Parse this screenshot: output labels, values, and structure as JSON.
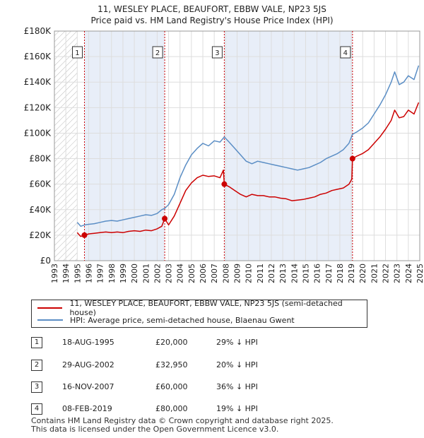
{
  "title_line1": "11, WESLEY PLACE, BEAUFORT, EBBW VALE, NP23 5JS",
  "title_line2": "Price paid vs. HM Land Registry's House Price Index (HPI)",
  "legend": {
    "property_label": "11, WESLEY PLACE, BEAUFORT, EBBW VALE, NP23 5JS (semi-detached house)",
    "hpi_label": "HPI: Average price, semi-detached house, Blaenau Gwent"
  },
  "colors": {
    "property": "#cc0000",
    "hpi": "#5b8ec5",
    "shade": "#e8eef8",
    "grid": "#dddddd",
    "marker_line": "#cc0000"
  },
  "sales": [
    {
      "num": "1",
      "date": "18-AUG-1995",
      "price": "£20,000",
      "hpi": "29% ↓ HPI"
    },
    {
      "num": "2",
      "date": "29-AUG-2002",
      "price": "£32,950",
      "hpi": "20% ↓ HPI"
    },
    {
      "num": "3",
      "date": "16-NOV-2007",
      "price": "£60,000",
      "hpi": "36% ↓ HPI"
    },
    {
      "num": "4",
      "date": "08-FEB-2019",
      "price": "£80,000",
      "hpi": "19% ↓ HPI"
    }
  ],
  "footer": {
    "line1": "Contains HM Land Registry data © Crown copyright and database right 2025.",
    "line2": "This data is licensed under the Open Government Licence v3.0."
  },
  "chart_data": {
    "type": "line",
    "title": "11, WESLEY PLACE, BEAUFORT, EBBW VALE, NP23 5JS",
    "subtitle": "Price paid vs. HM Land Registry's House Price Index (HPI)",
    "xlabel": "",
    "ylabel": "",
    "xlim": [
      1993,
      2025
    ],
    "ylim": [
      0,
      180000
    ],
    "yticks": [
      0,
      20000,
      40000,
      60000,
      80000,
      100000,
      120000,
      140000,
      160000,
      180000
    ],
    "ytick_labels": [
      "£0",
      "£20K",
      "£40K",
      "£60K",
      "£80K",
      "£100K",
      "£120K",
      "£140K",
      "£160K",
      "£180K"
    ],
    "xticks": [
      "1993",
      "1994",
      "1995",
      "1996",
      "1997",
      "1998",
      "1999",
      "2000",
      "2001",
      "2002",
      "2003",
      "2004",
      "2005",
      "2006",
      "2007",
      "2008",
      "2009",
      "2010",
      "2011",
      "2012",
      "2013",
      "2014",
      "2015",
      "2016",
      "2017",
      "2018",
      "2019",
      "2020",
      "2021",
      "2022",
      "2023",
      "2024",
      "2025"
    ],
    "grid": true,
    "hatched_region": [
      1993,
      1995.0
    ],
    "shaded_regions": [
      [
        1995.63,
        2002.66
      ],
      [
        2007.88,
        2019.11
      ]
    ],
    "sale_markers": [
      {
        "label": "1",
        "x": 1995.63,
        "y": 20000
      },
      {
        "label": "2",
        "x": 2002.66,
        "y": 32950
      },
      {
        "label": "3",
        "x": 2007.88,
        "y": 60000
      },
      {
        "label": "4",
        "x": 2019.11,
        "y": 80000
      }
    ],
    "series": [
      {
        "name": "11, WESLEY PLACE, BEAUFORT, EBBW VALE, NP23 5JS (semi-detached house)",
        "color": "#cc0000",
        "x": [
          1995.0,
          1995.3,
          1995.63,
          1996.0,
          1996.5,
          1997.0,
          1997.5,
          1998.0,
          1998.5,
          1999.0,
          1999.5,
          2000.0,
          2000.5,
          2001.0,
          2001.5,
          2002.0,
          2002.4,
          2002.66,
          2003.0,
          2003.5,
          2004.0,
          2004.5,
          2005.0,
          2005.5,
          2006.0,
          2006.5,
          2007.0,
          2007.5,
          2007.8,
          2007.88,
          2008.3,
          2008.8,
          2009.3,
          2009.8,
          2010.3,
          2010.8,
          2011.3,
          2011.8,
          2012.3,
          2012.8,
          2013.3,
          2013.8,
          2014.3,
          2014.8,
          2015.3,
          2015.8,
          2016.3,
          2016.8,
          2017.3,
          2017.8,
          2018.3,
          2018.8,
          2019.05,
          2019.11,
          2019.5,
          2020.0,
          2020.5,
          2021.0,
          2021.5,
          2022.0,
          2022.5,
          2022.8,
          2023.2,
          2023.6,
          2024.0,
          2024.5,
          2024.9
        ],
        "values": [
          22000,
          19000,
          20000,
          21000,
          21500,
          22000,
          22500,
          22000,
          22500,
          22000,
          23000,
          23500,
          23000,
          24000,
          23500,
          25000,
          27000,
          32950,
          28000,
          35000,
          45000,
          55000,
          61000,
          65000,
          67000,
          66000,
          66500,
          65000,
          71000,
          60000,
          58000,
          55000,
          52000,
          50000,
          52000,
          51000,
          51000,
          50000,
          50000,
          49000,
          48500,
          47000,
          47500,
          48000,
          49000,
          50000,
          52000,
          53000,
          55000,
          56000,
          57000,
          60000,
          64000,
          80000,
          82000,
          84000,
          87000,
          92000,
          97000,
          103000,
          110000,
          118000,
          112000,
          113000,
          118000,
          115000,
          124000
        ]
      },
      {
        "name": "HPI: Average price, semi-detached house, Blaenau Gwent",
        "color": "#5b8ec5",
        "x": [
          1995.0,
          1995.3,
          1995.63,
          1996.0,
          1996.5,
          1997.0,
          1997.5,
          1998.0,
          1998.5,
          1999.0,
          1999.5,
          2000.0,
          2000.5,
          2001.0,
          2001.5,
          2002.0,
          2002.4,
          2002.66,
          2003.0,
          2003.5,
          2004.0,
          2004.5,
          2005.0,
          2005.5,
          2006.0,
          2006.5,
          2007.0,
          2007.5,
          2007.88,
          2008.3,
          2008.8,
          2009.3,
          2009.8,
          2010.3,
          2010.8,
          2011.3,
          2011.8,
          2012.3,
          2012.8,
          2013.3,
          2013.8,
          2014.3,
          2014.8,
          2015.3,
          2015.8,
          2016.3,
          2016.8,
          2017.3,
          2017.8,
          2018.3,
          2018.8,
          2019.11,
          2019.5,
          2020.0,
          2020.5,
          2021.0,
          2021.5,
          2022.0,
          2022.5,
          2022.8,
          2023.2,
          2023.6,
          2024.0,
          2024.5,
          2024.9
        ],
        "values": [
          30000,
          27000,
          28000,
          28500,
          29000,
          30000,
          31000,
          31500,
          31000,
          32000,
          33000,
          34000,
          35000,
          36000,
          35500,
          37000,
          40000,
          41000,
          44000,
          52000,
          65000,
          75000,
          83000,
          88000,
          92000,
          90000,
          94000,
          93000,
          97000,
          93000,
          88000,
          83000,
          78000,
          76000,
          78000,
          77000,
          76000,
          75000,
          74000,
          73000,
          72000,
          71000,
          72000,
          73000,
          75000,
          77000,
          80000,
          82000,
          84000,
          87000,
          92000,
          99000,
          101000,
          104000,
          108000,
          115000,
          122000,
          130000,
          140000,
          148000,
          138000,
          140000,
          145000,
          142000,
          153000
        ]
      }
    ]
  }
}
